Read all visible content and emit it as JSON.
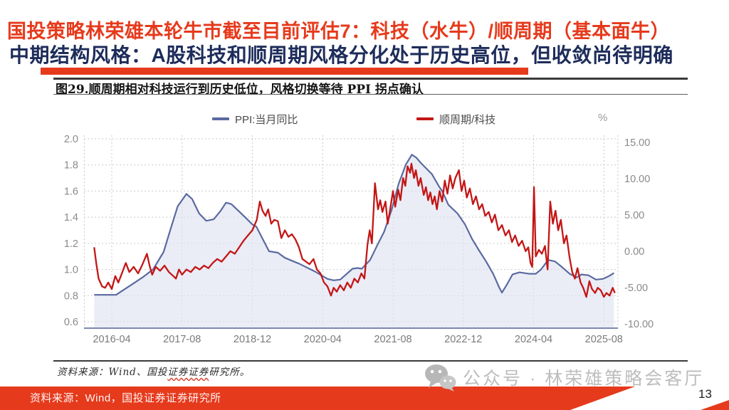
{
  "header": {
    "line1": "国投策略林荣雄本轮牛市截至目前评估7：科技（水牛）/顺周期（基本面牛）",
    "line2": "中期结构风格：A股科技和顺周期风格分化处于历史高位，但收敛尚待明确",
    "accent_color": "#e63a1c",
    "line2_color": "#1d2c5a"
  },
  "figure": {
    "title": "图29.顺周期相对科技运行到历史低位，风格切换等待 PPI 拐点确认",
    "source_prefix": "资料来源：Wind、国投",
    "source_wavy": "证券证券",
    "source_suffix": "研究所。"
  },
  "legend": {
    "ppi_label": "PPI:当月同比",
    "ratio_label": "顺周期/科技",
    "unit_label": "%"
  },
  "chart_data": {
    "type": "line",
    "title": "顺周期相对科技运行到历史低位，风格切换等待 PPI 拐点确认",
    "grid": true,
    "legend_position": "top",
    "x_axis": {
      "unit": "months since 2015-12",
      "tick_months": [
        4,
        20,
        36,
        52,
        68,
        84,
        100,
        116
      ],
      "tick_labels": [
        "2016-04",
        "2017-08",
        "2018-12",
        "2020-04",
        "2021-08",
        "2022-12",
        "2024-04",
        "2025-08"
      ]
    },
    "left_axis": {
      "series": "顺周期/科技",
      "range": [
        0.6,
        2.0
      ],
      "ticks": [
        2.0,
        1.8,
        1.6,
        1.4,
        1.2,
        1.0,
        0.8,
        0.6
      ],
      "labels": [
        "2.0",
        "1.8",
        "1.6",
        "1.4",
        "1.2",
        "1.0",
        "0.8",
        "0.6"
      ]
    },
    "right_axis": {
      "series": "PPI:当月同比",
      "unit": "%",
      "range": [
        -10,
        15
      ],
      "ticks": [
        15,
        10,
        5,
        0,
        -5,
        -10
      ],
      "labels": [
        "15.00",
        "10.00",
        "5.00",
        "0.00",
        "-5.00",
        "-10.00"
      ]
    },
    "series": [
      {
        "name": "PPI:当月同比",
        "axis": "right",
        "color": "#5b6aa0",
        "fill": "#dfe4f1",
        "points": [
          [
            0,
            -6
          ],
          [
            3,
            -6
          ],
          [
            5,
            -6
          ],
          [
            6,
            -5.6
          ],
          [
            8.5,
            -4.6
          ],
          [
            11,
            -3.6
          ],
          [
            13.4,
            -2.5
          ],
          [
            15.8,
            -0.1
          ],
          [
            17.4,
            3.1
          ],
          [
            19,
            6.2
          ],
          [
            21,
            7.9
          ],
          [
            22.3,
            7.2
          ],
          [
            23.9,
            5.2
          ],
          [
            25.5,
            4.2
          ],
          [
            27.2,
            4.4
          ],
          [
            28.8,
            5.6
          ],
          [
            30,
            6.7
          ],
          [
            31.2,
            6.5
          ],
          [
            32.8,
            5.6
          ],
          [
            34.5,
            4.6
          ],
          [
            36,
            3.7
          ],
          [
            36.9,
            3.4
          ],
          [
            39.8,
            0
          ],
          [
            41.8,
            -0.2
          ],
          [
            43.4,
            -0.9
          ],
          [
            45,
            -1.3
          ],
          [
            46.6,
            -1.7
          ],
          [
            50.3,
            -2.8
          ],
          [
            53.1,
            -3.8
          ],
          [
            54.5,
            -4
          ],
          [
            56,
            -3.9
          ],
          [
            58.8,
            -2.4
          ],
          [
            59.9,
            -2.3
          ],
          [
            60.9,
            -2.4
          ],
          [
            62.8,
            -1.2
          ],
          [
            64.4,
            0.8
          ],
          [
            66,
            2.7
          ],
          [
            67.7,
            5.7
          ],
          [
            69.3,
            9.3
          ],
          [
            70.9,
            11.9
          ],
          [
            72.3,
            13.3
          ],
          [
            73.3,
            12.9
          ],
          [
            74.3,
            12.2
          ],
          [
            76.9,
            10.6
          ],
          [
            78.5,
            8.9
          ],
          [
            79.2,
            8.3
          ],
          [
            80.6,
            6.4
          ],
          [
            82.7,
            5.2
          ],
          [
            84.4,
            3.7
          ],
          [
            86,
            1.7
          ],
          [
            87.6,
            0.1
          ],
          [
            89.2,
            -1.4
          ],
          [
            90.8,
            -3.1
          ],
          [
            92.2,
            -5
          ],
          [
            92.8,
            -5.7
          ],
          [
            94.1,
            -4.4
          ],
          [
            95.2,
            -3.2
          ],
          [
            96.8,
            -2.9
          ],
          [
            98.9,
            -3.1
          ],
          [
            100.5,
            -3.1
          ],
          [
            101.7,
            -2.5
          ],
          [
            103.3,
            -1.2
          ],
          [
            104.9,
            -1.4
          ],
          [
            106.5,
            -2.2
          ],
          [
            108.2,
            -3.1
          ],
          [
            109.8,
            -3.6
          ],
          [
            110.9,
            -3.2
          ],
          [
            112.5,
            -3.3
          ],
          [
            114.2,
            -3.9
          ],
          [
            115.8,
            -3.8
          ],
          [
            117.2,
            -3.4
          ],
          [
            118.3,
            -3
          ]
        ]
      },
      {
        "name": "顺周期/科技",
        "axis": "left",
        "color": "#c41616",
        "points": [
          [
            0,
            1.17
          ],
          [
            0.5,
            1.04
          ],
          [
            1,
            0.93
          ],
          [
            1.8,
            0.87
          ],
          [
            2.5,
            0.86
          ],
          [
            3.2,
            0.9
          ],
          [
            4,
            0.85
          ],
          [
            4.8,
            0.95
          ],
          [
            5.5,
            0.9
          ],
          [
            6.3,
            0.97
          ],
          [
            7.2,
            1.05
          ],
          [
            8,
            0.98
          ],
          [
            9,
            1.02
          ],
          [
            10,
            0.97
          ],
          [
            11,
            1.04
          ],
          [
            12,
            1.12
          ],
          [
            12.6,
            1.03
          ],
          [
            13.2,
            0.96
          ],
          [
            14,
            1.02
          ],
          [
            15,
            0.99
          ],
          [
            16,
            1.03
          ],
          [
            17,
            0.98
          ],
          [
            18,
            0.95
          ],
          [
            18.6,
            0.93
          ],
          [
            19.3,
            1
          ],
          [
            20,
            0.96
          ],
          [
            21,
            1
          ],
          [
            22,
            0.98
          ],
          [
            23,
            1.02
          ],
          [
            24,
            1
          ],
          [
            25,
            1.03
          ],
          [
            26,
            1.01
          ],
          [
            27,
            1.05
          ],
          [
            28,
            1.08
          ],
          [
            29,
            1.06
          ],
          [
            30,
            1.1
          ],
          [
            31,
            1.14
          ],
          [
            32,
            1.12
          ],
          [
            33,
            1.17
          ],
          [
            34,
            1.22
          ],
          [
            35,
            1.26
          ],
          [
            36,
            1.3
          ],
          [
            37,
            1.38
          ],
          [
            37.7,
            1.52
          ],
          [
            38.3,
            1.45
          ],
          [
            39,
            1.41
          ],
          [
            39.6,
            1.46
          ],
          [
            40.3,
            1.35
          ],
          [
            41,
            1.38
          ],
          [
            41.8,
            1.37
          ],
          [
            42.6,
            1.24
          ],
          [
            43.4,
            1.3
          ],
          [
            44.2,
            1.25
          ],
          [
            45,
            1.27
          ],
          [
            45.8,
            1.23
          ],
          [
            46.6,
            1.17
          ],
          [
            47.4,
            1.08
          ],
          [
            48.2,
            1.06
          ],
          [
            49,
            1.04
          ],
          [
            49.9,
            1.08
          ],
          [
            50.7,
            1
          ],
          [
            51.5,
            0.97
          ],
          [
            52.3,
            0.9
          ],
          [
            53.1,
            0.87
          ],
          [
            53.9,
            0.8
          ],
          [
            54.5,
            0.86
          ],
          [
            55.2,
            0.83
          ],
          [
            56,
            0.88
          ],
          [
            56.8,
            0.84
          ],
          [
            57.6,
            0.9
          ],
          [
            58.4,
            0.86
          ],
          [
            59.2,
            0.93
          ],
          [
            60,
            0.9
          ],
          [
            60.8,
            0.97
          ],
          [
            61.5,
            0.93
          ],
          [
            62.2,
            1.19
          ],
          [
            62.7,
            1.3
          ],
          [
            63.2,
            1.2
          ],
          [
            63.9,
            1.66
          ],
          [
            64.6,
            1.46
          ],
          [
            65.1,
            1.53
          ],
          [
            65.6,
            1.44
          ],
          [
            66.3,
            1.52
          ],
          [
            66.8,
            1.35
          ],
          [
            67.3,
            1.45
          ],
          [
            68,
            1.6
          ],
          [
            68.5,
            1.48
          ],
          [
            69.2,
            1.61
          ],
          [
            69.7,
            1.53
          ],
          [
            70.3,
            1.7
          ],
          [
            70.8,
            1.64
          ],
          [
            71.3,
            1.79
          ],
          [
            71.9,
            1.74
          ],
          [
            72.2,
            1.81
          ],
          [
            72.8,
            1.7
          ],
          [
            73.2,
            1.76
          ],
          [
            73.8,
            1.64
          ],
          [
            74.3,
            1.7
          ],
          [
            75,
            1.57
          ],
          [
            75.5,
            1.63
          ],
          [
            76,
            1.53
          ],
          [
            76.5,
            1.59
          ],
          [
            77,
            1.5
          ],
          [
            77.5,
            1.56
          ],
          [
            78,
            1.46
          ],
          [
            78.6,
            1.6
          ],
          [
            79.2,
            1.52
          ],
          [
            79.8,
            1.68
          ],
          [
            80.4,
            1.58
          ],
          [
            81,
            1.72
          ],
          [
            81.6,
            1.62
          ],
          [
            82.2,
            1.7
          ],
          [
            83,
            1.76
          ],
          [
            83.6,
            1.6
          ],
          [
            84.2,
            1.68
          ],
          [
            84.8,
            1.55
          ],
          [
            85.5,
            1.62
          ],
          [
            86.2,
            1.5
          ],
          [
            86.9,
            1.56
          ],
          [
            87.6,
            1.46
          ],
          [
            88.3,
            1.5
          ],
          [
            89,
            1.41
          ],
          [
            89.8,
            1.44
          ],
          [
            90.5,
            1.36
          ],
          [
            91.2,
            1.42
          ],
          [
            92,
            1.3
          ],
          [
            92.8,
            1.34
          ],
          [
            93.6,
            1.26
          ],
          [
            94.4,
            1.3
          ],
          [
            95.1,
            1.21
          ],
          [
            95.8,
            1.26
          ],
          [
            96.6,
            1.18
          ],
          [
            97.4,
            1.22
          ],
          [
            98.2,
            1.14
          ],
          [
            98.8,
            1.17
          ],
          [
            99.3,
            1.05
          ],
          [
            99.7,
            1.02
          ],
          [
            100.1,
            1.63
          ],
          [
            100.5,
            1.1
          ],
          [
            101.2,
            1.15
          ],
          [
            101.9,
            1.12
          ],
          [
            102.6,
            1.18
          ],
          [
            103.2,
            1
          ],
          [
            103.8,
            1.52
          ],
          [
            104.4,
            1.35
          ],
          [
            105,
            1.45
          ],
          [
            105.6,
            1.3
          ],
          [
            106.2,
            1.38
          ],
          [
            106.9,
            1.2
          ],
          [
            107.5,
            1.26
          ],
          [
            108.2,
            1.09
          ],
          [
            108.8,
            0.98
          ],
          [
            109.4,
            0.93
          ],
          [
            110,
            1.01
          ],
          [
            110.7,
            0.9
          ],
          [
            111.3,
            0.86
          ],
          [
            112,
            0.79
          ],
          [
            112.7,
            0.91
          ],
          [
            113.3,
            0.85
          ],
          [
            114,
            0.82
          ],
          [
            114.6,
            0.86
          ],
          [
            115.3,
            0.84
          ],
          [
            116,
            0.79
          ],
          [
            116.6,
            0.82
          ],
          [
            117.3,
            0.8
          ],
          [
            118,
            0.86
          ],
          [
            118.5,
            0.82
          ]
        ]
      }
    ]
  },
  "watermark": {
    "text": "公众号 · 林荣雄策略会客厅",
    "icon": "wechat-icon"
  },
  "footer": {
    "source_text": "资料来源：Wind，国投证券证券研究所",
    "page_number": "13",
    "bar_color": "#e63a1c"
  }
}
